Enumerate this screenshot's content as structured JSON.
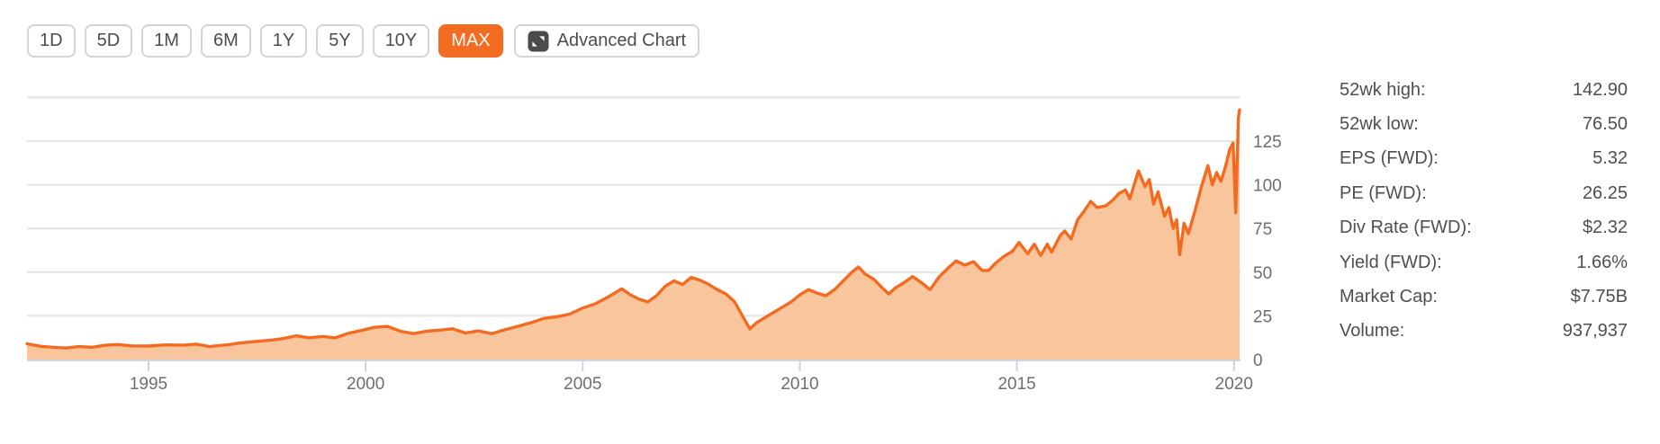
{
  "colors": {
    "accent": "#f36c21",
    "line": "#f26b21",
    "fill": "#f8c59c",
    "grid": "#e4e4e4",
    "axis": "#c9d4e2"
  },
  "toolbar": {
    "ranges": [
      {
        "label": "1D",
        "active": false
      },
      {
        "label": "5D",
        "active": false
      },
      {
        "label": "1M",
        "active": false
      },
      {
        "label": "6M",
        "active": false
      },
      {
        "label": "1Y",
        "active": false
      },
      {
        "label": "5Y",
        "active": false
      },
      {
        "label": "10Y",
        "active": false
      },
      {
        "label": "MAX",
        "active": true
      }
    ],
    "advanced_chart_label": "Advanced Chart"
  },
  "stats": {
    "rows": [
      {
        "label": "52wk high:",
        "value": "142.90"
      },
      {
        "label": "52wk low:",
        "value": "76.50"
      },
      {
        "label": "EPS (FWD):",
        "value": "5.32"
      },
      {
        "label": "PE (FWD):",
        "value": "26.25"
      },
      {
        "label": "Div Rate (FWD):",
        "value": "$2.32"
      },
      {
        "label": "Yield (FWD):",
        "value": "1.66%"
      },
      {
        "label": "Market Cap:",
        "value": "$7.75B"
      },
      {
        "label": "Volume:",
        "value": "937,937"
      }
    ]
  },
  "chart_data": {
    "type": "area",
    "title": "Stock price history (MAX range)",
    "xlabel": "",
    "ylabel": "",
    "xlim": [
      1992.2,
      2020.15
    ],
    "ylim": [
      0,
      160.5
    ],
    "xticks": [
      1995,
      2000,
      2005,
      2010,
      2015,
      2020
    ],
    "yticks": [
      0,
      25,
      50,
      75,
      100,
      125
    ],
    "grid_values": [
      25,
      50,
      75,
      100,
      125,
      150
    ],
    "grid_on": true,
    "legend": "none",
    "line_color": "#f26b21",
    "fill_color": "#f8c59c",
    "series": [
      {
        "name": "price",
        "points": [
          [
            1992.2,
            9.0
          ],
          [
            1992.5,
            7.6
          ],
          [
            1992.8,
            7.0
          ],
          [
            1993.1,
            6.6
          ],
          [
            1993.4,
            7.4
          ],
          [
            1993.7,
            7.0
          ],
          [
            1994.0,
            8.2
          ],
          [
            1994.3,
            8.6
          ],
          [
            1994.6,
            7.8
          ],
          [
            1995.0,
            7.7
          ],
          [
            1995.4,
            8.4
          ],
          [
            1995.8,
            8.2
          ],
          [
            1996.1,
            8.8
          ],
          [
            1996.4,
            7.4
          ],
          [
            1996.8,
            8.4
          ],
          [
            1997.1,
            9.4
          ],
          [
            1997.4,
            10.2
          ],
          [
            1997.8,
            11.0
          ],
          [
            1998.1,
            12.0
          ],
          [
            1998.4,
            13.6
          ],
          [
            1998.7,
            12.4
          ],
          [
            1999.0,
            13.2
          ],
          [
            1999.3,
            12.4
          ],
          [
            1999.6,
            15.0
          ],
          [
            1999.9,
            16.6
          ],
          [
            2000.2,
            18.4
          ],
          [
            2000.5,
            19.0
          ],
          [
            2000.8,
            16.2
          ],
          [
            2001.1,
            14.8
          ],
          [
            2001.4,
            16.2
          ],
          [
            2001.7,
            16.8
          ],
          [
            2002.0,
            17.6
          ],
          [
            2002.3,
            15.2
          ],
          [
            2002.6,
            16.4
          ],
          [
            2002.9,
            14.8
          ],
          [
            2003.2,
            17.0
          ],
          [
            2003.5,
            19.0
          ],
          [
            2003.8,
            21.0
          ],
          [
            2004.1,
            23.5
          ],
          [
            2004.4,
            24.5
          ],
          [
            2004.7,
            26.0
          ],
          [
            2005.0,
            29.5
          ],
          [
            2005.3,
            32.0
          ],
          [
            2005.6,
            36.0
          ],
          [
            2005.9,
            40.5
          ],
          [
            2006.1,
            37.0
          ],
          [
            2006.3,
            34.5
          ],
          [
            2006.5,
            33.0
          ],
          [
            2006.7,
            36.5
          ],
          [
            2006.9,
            42.0
          ],
          [
            2007.1,
            45.0
          ],
          [
            2007.3,
            43.0
          ],
          [
            2007.5,
            47.0
          ],
          [
            2007.7,
            45.5
          ],
          [
            2007.9,
            43.0
          ],
          [
            2008.1,
            40.0
          ],
          [
            2008.3,
            37.5
          ],
          [
            2008.5,
            33.0
          ],
          [
            2008.7,
            24.0
          ],
          [
            2008.85,
            17.5
          ],
          [
            2009.0,
            21.0
          ],
          [
            2009.2,
            24.0
          ],
          [
            2009.4,
            27.0
          ],
          [
            2009.6,
            30.0
          ],
          [
            2009.8,
            33.0
          ],
          [
            2010.0,
            37.0
          ],
          [
            2010.2,
            40.0
          ],
          [
            2010.4,
            38.0
          ],
          [
            2010.6,
            36.5
          ],
          [
            2010.8,
            40.0
          ],
          [
            2011.0,
            45.0
          ],
          [
            2011.2,
            50.0
          ],
          [
            2011.35,
            53.0
          ],
          [
            2011.5,
            49.0
          ],
          [
            2011.7,
            46.0
          ],
          [
            2011.9,
            41.0
          ],
          [
            2012.05,
            37.5
          ],
          [
            2012.2,
            41.0
          ],
          [
            2012.4,
            44.0
          ],
          [
            2012.6,
            47.5
          ],
          [
            2012.8,
            44.0
          ],
          [
            2013.0,
            40.0
          ],
          [
            2013.2,
            47.0
          ],
          [
            2013.4,
            52.0
          ],
          [
            2013.6,
            56.5
          ],
          [
            2013.8,
            54.0
          ],
          [
            2014.0,
            56.0
          ],
          [
            2014.2,
            51.0
          ],
          [
            2014.35,
            51.0
          ],
          [
            2014.5,
            55.0
          ],
          [
            2014.7,
            59.0
          ],
          [
            2014.9,
            62.0
          ],
          [
            2015.05,
            67.0
          ],
          [
            2015.25,
            60.5
          ],
          [
            2015.4,
            66.0
          ],
          [
            2015.55,
            59.5
          ],
          [
            2015.7,
            66.0
          ],
          [
            2015.8,
            61.5
          ],
          [
            2016.0,
            71.0
          ],
          [
            2016.1,
            73.5
          ],
          [
            2016.25,
            69.0
          ],
          [
            2016.4,
            80.0
          ],
          [
            2016.55,
            85.0
          ],
          [
            2016.7,
            90.5
          ],
          [
            2016.85,
            87.0
          ],
          [
            2017.05,
            88.0
          ],
          [
            2017.2,
            91.0
          ],
          [
            2017.35,
            95.0
          ],
          [
            2017.5,
            97.0
          ],
          [
            2017.6,
            92.0
          ],
          [
            2017.8,
            108.0
          ],
          [
            2017.95,
            99.0
          ],
          [
            2018.05,
            103.0
          ],
          [
            2018.15,
            89.0
          ],
          [
            2018.25,
            96.0
          ],
          [
            2018.4,
            82.0
          ],
          [
            2018.5,
            87.0
          ],
          [
            2018.6,
            75.0
          ],
          [
            2018.68,
            80.0
          ],
          [
            2018.75,
            60.0
          ],
          [
            2018.85,
            78.0
          ],
          [
            2018.95,
            72.0
          ],
          [
            2019.1,
            85.0
          ],
          [
            2019.25,
            99.0
          ],
          [
            2019.4,
            111.0
          ],
          [
            2019.5,
            100.0
          ],
          [
            2019.6,
            107.0
          ],
          [
            2019.7,
            102.0
          ],
          [
            2019.8,
            110.0
          ],
          [
            2019.9,
            120.0
          ],
          [
            2019.98,
            124.0
          ],
          [
            2020.04,
            84.0
          ],
          [
            2020.1,
            138.0
          ],
          [
            2020.13,
            142.9
          ]
        ]
      }
    ]
  }
}
